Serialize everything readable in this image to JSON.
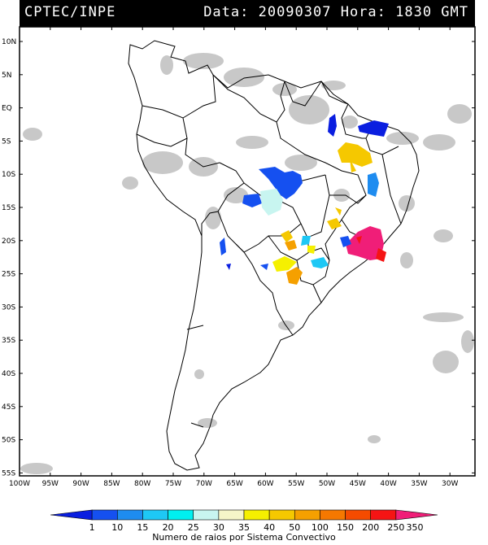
{
  "header": {
    "agency": "CPTEC/INPE",
    "datetime": "Data: 20090307 Hora: 1830 GMT"
  },
  "map": {
    "lat_labels": [
      "10N",
      "5N",
      "EQ",
      "5S",
      "10S",
      "15S",
      "20S",
      "25S",
      "30S",
      "35S",
      "40S",
      "45S",
      "50S",
      "55S"
    ],
    "lon_labels": [
      "100W",
      "95W",
      "90W",
      "85W",
      "80W",
      "75W",
      "70W",
      "65W",
      "60W",
      "55W",
      "50W",
      "45W",
      "40W",
      "35W",
      "30W"
    ]
  },
  "legend": {
    "title": "Numero de raios por Sistema Convectivo",
    "bins": [
      "1",
      "10",
      "15",
      "20",
      "25",
      "30",
      "35",
      "40",
      "50",
      "100",
      "150",
      "200",
      "250",
      "350"
    ],
    "colors": [
      "#0a1ee0",
      "#1550f0",
      "#1e8cf0",
      "#1ec8f5",
      "#00f0f0",
      "#c8f5f0",
      "#f5f5c8",
      "#f5f000",
      "#f5c800",
      "#f5a000",
      "#f57800",
      "#f54b00",
      "#f51414",
      "#f01e78"
    ]
  },
  "features": {
    "cloud_color": "#c8c8c8"
  }
}
